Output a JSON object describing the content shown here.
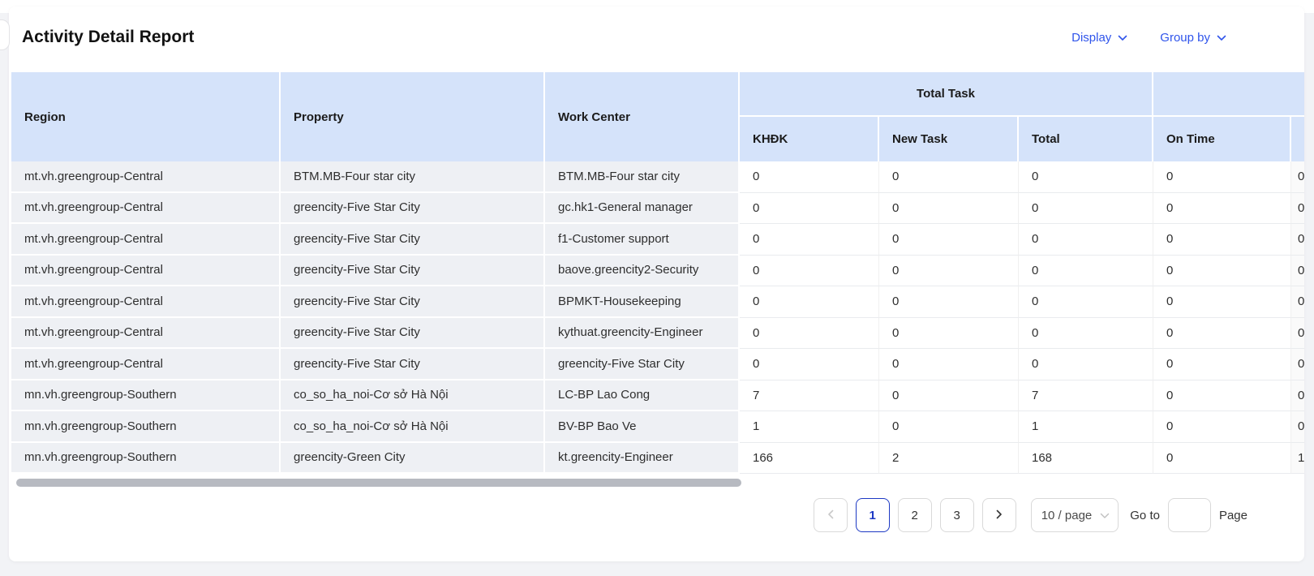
{
  "page": {
    "title": "Activity Detail Report"
  },
  "controls": {
    "display_label": "Display",
    "group_by_label": "Group by"
  },
  "table": {
    "columns": {
      "region": "Region",
      "property": "Property",
      "work_center": "Work Center",
      "total_task_group": "Total Task",
      "khdk": "KHĐK",
      "new_task": "New Task",
      "total": "Total",
      "on_time": "On Time",
      "clipped": ""
    },
    "rows": [
      {
        "region": "mt.vh.greengroup-Central",
        "property": "BTM.MB-Four star city",
        "work_center": "BTM.MB-Four star city",
        "khdk": "0",
        "new_task": "0",
        "total": "0",
        "on_time": "0",
        "clipped": "0"
      },
      {
        "region": "mt.vh.greengroup-Central",
        "property": "greencity-Five Star City",
        "work_center": "gc.hk1-General manager",
        "khdk": "0",
        "new_task": "0",
        "total": "0",
        "on_time": "0",
        "clipped": "0"
      },
      {
        "region": "mt.vh.greengroup-Central",
        "property": "greencity-Five Star City",
        "work_center": "f1-Customer support",
        "khdk": "0",
        "new_task": "0",
        "total": "0",
        "on_time": "0",
        "clipped": "0"
      },
      {
        "region": "mt.vh.greengroup-Central",
        "property": "greencity-Five Star City",
        "work_center": "baove.greencity2-Security",
        "khdk": "0",
        "new_task": "0",
        "total": "0",
        "on_time": "0",
        "clipped": "0"
      },
      {
        "region": "mt.vh.greengroup-Central",
        "property": "greencity-Five Star City",
        "work_center": "BPMKT-Housekeeping",
        "khdk": "0",
        "new_task": "0",
        "total": "0",
        "on_time": "0",
        "clipped": "0"
      },
      {
        "region": "mt.vh.greengroup-Central",
        "property": "greencity-Five Star City",
        "work_center": "kythuat.greencity-Engineer",
        "khdk": "0",
        "new_task": "0",
        "total": "0",
        "on_time": "0",
        "clipped": "0"
      },
      {
        "region": "mt.vh.greengroup-Central",
        "property": "greencity-Five Star City",
        "work_center": "greencity-Five Star City",
        "khdk": "0",
        "new_task": "0",
        "total": "0",
        "on_time": "0",
        "clipped": "0"
      },
      {
        "region": "mn.vh.greengroup-Southern",
        "property": "co_so_ha_noi-Cơ sở Hà Nội",
        "work_center": "LC-BP Lao Cong",
        "khdk": "7",
        "new_task": "0",
        "total": "7",
        "on_time": "0",
        "clipped": "0"
      },
      {
        "region": "mn.vh.greengroup-Southern",
        "property": "co_so_ha_noi-Cơ sở Hà Nội",
        "work_center": "BV-BP Bao Ve",
        "khdk": "1",
        "new_task": "0",
        "total": "1",
        "on_time": "0",
        "clipped": "0"
      },
      {
        "region": "mn.vh.greengroup-Southern",
        "property": "greencity-Green City",
        "work_center": "kt.greencity-Engineer",
        "khdk": "166",
        "new_task": "2",
        "total": "168",
        "on_time": "0",
        "clipped": "1"
      }
    ]
  },
  "pagination": {
    "pages": [
      "1",
      "2",
      "3"
    ],
    "active_page": "1",
    "page_size": "10 / page",
    "goto_label": "Go to",
    "page_label": "Page",
    "goto_value": ""
  },
  "icons": {
    "display_dropdown": "chevron-down",
    "group_by_dropdown": "chevron-down",
    "prev": "chevron-left",
    "next": "chevron-right",
    "page_size_dropdown": "chevron-down"
  },
  "colors": {
    "accent_blue": "#2f54eb",
    "active_page_blue": "#1d39c4",
    "header_bg": "#d5e3fa",
    "fixed_cell_bg": "#eef0f4",
    "page_bg": "#f2f3f6",
    "scrollbar_thumb": "#b7bac1"
  }
}
